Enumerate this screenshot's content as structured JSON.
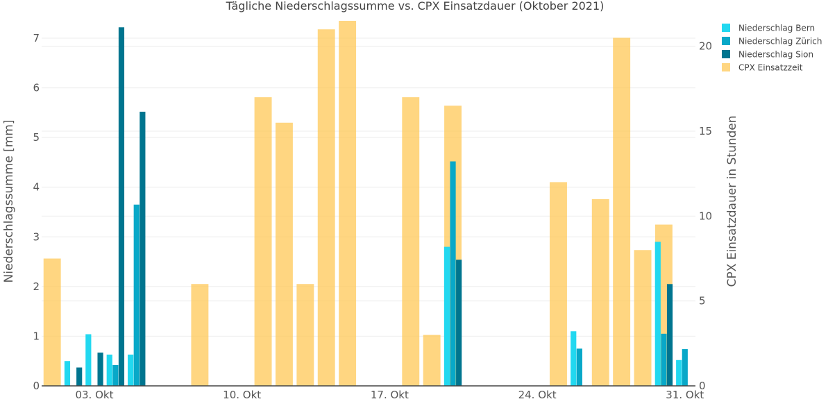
{
  "chart_data": {
    "type": "bar",
    "title": "Tägliche Niederschlagssumme vs. CPX Einsatzdauer (Oktober 2021)",
    "y_label": "Niederschlagssumme [mm]",
    "y2_label": "CPX Einsatzdauer in Stunden",
    "x_range": [
      "2021-10-01",
      "2021-10-31"
    ],
    "y_range": [
      0,
      7.35
    ],
    "y2_range": [
      0,
      21.5
    ],
    "x_ticks": [
      {
        "date": "2021-10-03",
        "label": "03. Okt"
      },
      {
        "date": "2021-10-10",
        "label": "10. Okt"
      },
      {
        "date": "2021-10-17",
        "label": "17. Okt"
      },
      {
        "date": "2021-10-24",
        "label": "24. Okt"
      },
      {
        "date": "2021-10-31",
        "label": "31. Okt"
      }
    ],
    "y_ticks": [
      0,
      1,
      2,
      3,
      4,
      5,
      6,
      7
    ],
    "y2_ticks": [
      0,
      5,
      10,
      15,
      20
    ],
    "legend_position": "top-right",
    "gridlines": true,
    "series": [
      {
        "name": "Niederschlag Bern",
        "axis": "y",
        "color": "#22d8f0",
        "points": [
          {
            "x": "2021-10-02",
            "y": 0.5
          },
          {
            "x": "2021-10-03",
            "y": 1.04
          },
          {
            "x": "2021-10-04",
            "y": 0.63
          },
          {
            "x": "2021-10-05",
            "y": 0.63
          },
          {
            "x": "2021-10-20",
            "y": 2.8
          },
          {
            "x": "2021-10-26",
            "y": 1.1
          },
          {
            "x": "2021-10-30",
            "y": 2.9
          },
          {
            "x": "2021-10-31",
            "y": 0.52
          }
        ]
      },
      {
        "name": "Niederschlag Zürich",
        "axis": "y",
        "color": "#08a8c8",
        "points": [
          {
            "x": "2021-10-04",
            "y": 0.42
          },
          {
            "x": "2021-10-05",
            "y": 3.65
          },
          {
            "x": "2021-10-20",
            "y": 4.52
          },
          {
            "x": "2021-10-26",
            "y": 0.75
          },
          {
            "x": "2021-10-30",
            "y": 1.05
          },
          {
            "x": "2021-10-31",
            "y": 0.74
          }
        ]
      },
      {
        "name": "Niederschlag Sion",
        "axis": "y",
        "color": "#00758f",
        "points": [
          {
            "x": "2021-10-02",
            "y": 0.37
          },
          {
            "x": "2021-10-03",
            "y": 0.67
          },
          {
            "x": "2021-10-04",
            "y": 7.22
          },
          {
            "x": "2021-10-05",
            "y": 5.52
          },
          {
            "x": "2021-10-20",
            "y": 2.54
          },
          {
            "x": "2021-10-30",
            "y": 2.05
          }
        ]
      },
      {
        "name": "CPX Einsatzzeit",
        "axis": "y2",
        "color": "#ffc857",
        "points": [
          {
            "x": "2021-10-01",
            "y": 7.5
          },
          {
            "x": "2021-10-08",
            "y": 6
          },
          {
            "x": "2021-10-11",
            "y": 17
          },
          {
            "x": "2021-10-12",
            "y": 15.5
          },
          {
            "x": "2021-10-13",
            "y": 6
          },
          {
            "x": "2021-10-14",
            "y": 21
          },
          {
            "x": "2021-10-15",
            "y": 21.5
          },
          {
            "x": "2021-10-18",
            "y": 17
          },
          {
            "x": "2021-10-19",
            "y": 3
          },
          {
            "x": "2021-10-20",
            "y": 16.5
          },
          {
            "x": "2021-10-25",
            "y": 12
          },
          {
            "x": "2021-10-27",
            "y": 11
          },
          {
            "x": "2021-10-28",
            "y": 20.5
          },
          {
            "x": "2021-10-29",
            "y": 8
          },
          {
            "x": "2021-10-30",
            "y": 9.5
          }
        ]
      }
    ]
  }
}
